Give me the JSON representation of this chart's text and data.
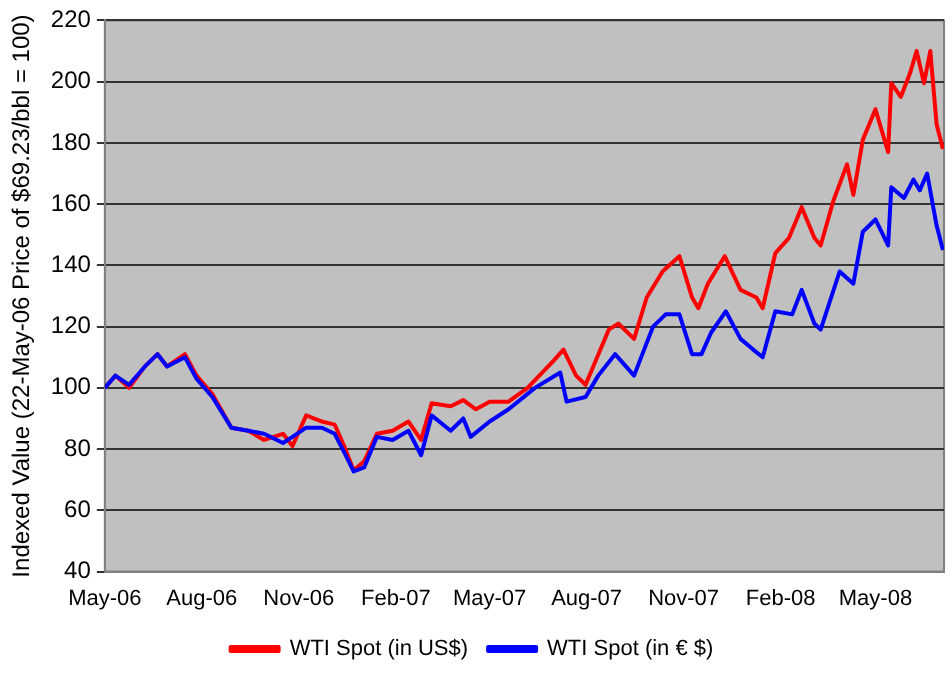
{
  "chart_data": {
    "type": "line",
    "ylabel": "Indexed Value (22-May-06 Price of $69.23/bbl = 100)",
    "xlim": [
      "2006-05-01",
      "2008-07-05"
    ],
    "xticks": [
      {
        "value": "2006-05-01",
        "label": "May-06"
      },
      {
        "value": "2006-08-01",
        "label": "Aug-06"
      },
      {
        "value": "2006-11-01",
        "label": "Nov-06"
      },
      {
        "value": "2007-02-01",
        "label": "Feb-07"
      },
      {
        "value": "2007-05-01",
        "label": "May-07"
      },
      {
        "value": "2007-08-01",
        "label": "Aug-07"
      },
      {
        "value": "2007-11-01",
        "label": "Nov-07"
      },
      {
        "value": "2008-02-01",
        "label": "Feb-08"
      },
      {
        "value": "2008-05-01",
        "label": "May-08"
      }
    ],
    "ylim": [
      40,
      220
    ],
    "yticks": [
      40,
      60,
      80,
      100,
      120,
      140,
      160,
      180,
      200,
      220
    ],
    "grid": "y",
    "legend": "bottom",
    "marker": "none",
    "line_style": "solid",
    "series": [
      {
        "name": "WTI Spot (in US$)",
        "color": "#ff0000",
        "x": [
          "2006-05-01",
          "2006-05-11",
          "2006-05-24",
          "2006-06-08",
          "2006-06-20",
          "2006-06-29",
          "2006-07-16",
          "2006-07-27",
          "2006-08-11",
          "2006-08-29",
          "2006-09-14",
          "2006-09-29",
          "2006-10-17",
          "2006-10-26",
          "2006-11-08",
          "2006-11-23",
          "2006-12-05",
          "2006-12-14",
          "2006-12-23",
          "2007-01-02",
          "2007-01-14",
          "2007-01-29",
          "2007-02-13",
          "2007-02-25",
          "2007-03-07",
          "2007-03-25",
          "2007-04-06",
          "2007-04-18",
          "2007-05-01",
          "2007-05-19",
          "2007-06-06",
          "2007-07-01",
          "2007-07-10",
          "2007-07-22",
          "2007-07-31",
          "2007-08-22",
          "2007-08-31",
          "2007-09-15",
          "2007-09-27",
          "2007-10-12",
          "2007-10-28",
          "2007-11-09",
          "2007-11-15",
          "2007-11-24",
          "2007-12-10",
          "2007-12-25",
          "2008-01-09",
          "2008-01-15",
          "2008-01-27",
          "2008-02-09",
          "2008-02-21",
          "2008-03-04",
          "2008-03-10",
          "2008-03-22",
          "2008-04-04",
          "2008-04-10",
          "2008-04-19",
          "2008-05-01",
          "2008-05-13",
          "2008-05-16",
          "2008-05-25",
          "2008-06-03",
          "2008-06-09",
          "2008-06-16",
          "2008-06-22",
          "2008-06-28",
          "2008-07-04"
        ],
        "values": [
          100,
          104,
          100,
          107,
          111,
          107,
          111,
          104,
          98,
          87,
          86,
          83,
          85,
          81,
          91,
          89,
          88,
          81,
          73,
          76,
          85,
          86,
          89,
          83,
          95,
          94,
          96,
          93,
          95.5,
          95.5,
          100,
          109,
          112.5,
          104,
          101,
          119,
          121,
          116,
          129.5,
          138,
          143,
          129.5,
          126,
          134,
          143,
          132,
          129.5,
          126,
          144,
          149,
          159,
          149,
          146.5,
          161,
          173,
          163,
          181,
          191,
          177,
          199.5,
          195,
          203,
          210,
          199.5,
          210,
          186,
          178
        ]
      },
      {
        "name": "WTI Spot (in € $)",
        "color": "#0000ff",
        "x": [
          "2006-05-01",
          "2006-05-11",
          "2006-05-24",
          "2006-06-08",
          "2006-06-20",
          "2006-06-29",
          "2006-07-16",
          "2006-07-27",
          "2006-08-11",
          "2006-08-29",
          "2006-09-14",
          "2006-09-29",
          "2006-10-17",
          "2006-10-26",
          "2006-11-08",
          "2006-11-23",
          "2006-12-05",
          "2006-12-14",
          "2006-12-23",
          "2007-01-02",
          "2007-01-14",
          "2007-01-29",
          "2007-02-13",
          "2007-02-25",
          "2007-03-07",
          "2007-03-25",
          "2007-04-06",
          "2007-04-13",
          "2007-05-01",
          "2007-05-19",
          "2007-06-13",
          "2007-07-07",
          "2007-07-13",
          "2007-07-31",
          "2007-08-12",
          "2007-08-28",
          "2007-09-15",
          "2007-10-03",
          "2007-10-15",
          "2007-10-28",
          "2007-11-09",
          "2007-11-18",
          "2007-11-27",
          "2007-12-11",
          "2007-12-25",
          "2008-01-06",
          "2008-01-15",
          "2008-01-27",
          "2008-02-12",
          "2008-02-21",
          "2008-03-04",
          "2008-03-10",
          "2008-03-28",
          "2008-04-10",
          "2008-04-19",
          "2008-05-01",
          "2008-05-13",
          "2008-05-16",
          "2008-05-28",
          "2008-06-06",
          "2008-06-12",
          "2008-06-19",
          "2008-06-28",
          "2008-07-04"
        ],
        "values": [
          100,
          104,
          101,
          107,
          111,
          107,
          110,
          103,
          97,
          87,
          86,
          85,
          82,
          84,
          87,
          87,
          85,
          79,
          72.7,
          74,
          84,
          83,
          86,
          78,
          91,
          86,
          90,
          84,
          89,
          93,
          100,
          105,
          95.5,
          97,
          104,
          111,
          104,
          120,
          124,
          124,
          111,
          111,
          118,
          125,
          116,
          112.5,
          110,
          125,
          124,
          132,
          121,
          119,
          138,
          134,
          151,
          155,
          146.5,
          165.5,
          162,
          168,
          164.5,
          170,
          153,
          145
        ]
      }
    ]
  }
}
